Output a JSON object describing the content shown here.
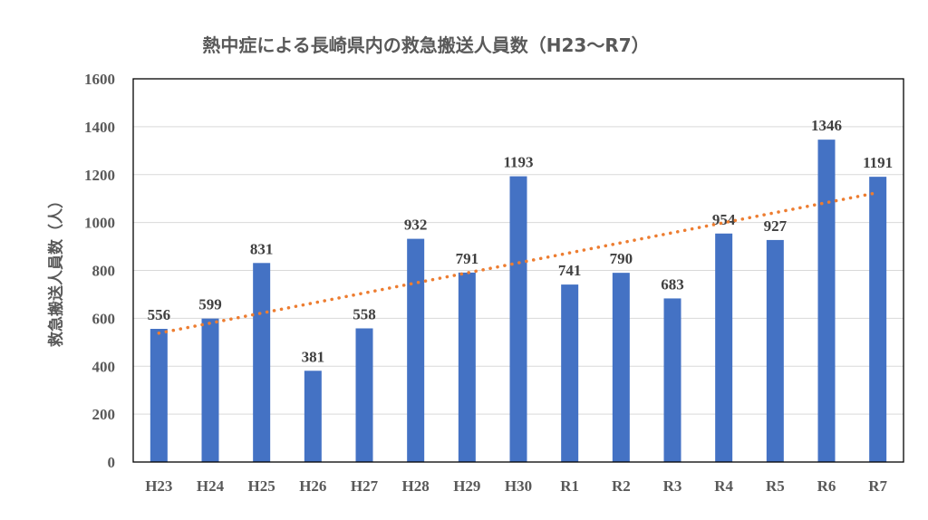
{
  "chart_data": {
    "type": "bar",
    "title": "熱中症による長崎県内の救急搬送人員数（H23～R7）",
    "xlabel": "",
    "ylabel": "救急搬送人員数（人）",
    "categories": [
      "H23",
      "H24",
      "H25",
      "H26",
      "H27",
      "H28",
      "H29",
      "H30",
      "R1",
      "R2",
      "R3",
      "R4",
      "R5",
      "R6",
      "R7"
    ],
    "values": [
      556,
      599,
      831,
      381,
      558,
      932,
      791,
      1193,
      741,
      790,
      683,
      954,
      927,
      1346,
      1191
    ],
    "ylim": [
      0,
      1600
    ],
    "yticks": [
      0,
      200,
      400,
      600,
      800,
      1000,
      1200,
      1400,
      1600
    ],
    "grid": true,
    "data_labels": true,
    "trendline": "linear",
    "colors": {
      "bar": "#4472C4",
      "trendline": "#ED7D31"
    }
  }
}
